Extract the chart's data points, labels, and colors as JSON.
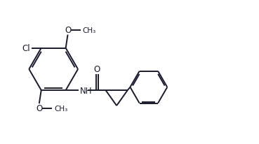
{
  "bg_color": "#ffffff",
  "line_color": "#1a1a2e",
  "line_width": 1.4,
  "font_size": 8.5,
  "fig_width": 3.69,
  "fig_height": 2.07,
  "dpi": 100,
  "xlim": [
    0,
    10
  ],
  "ylim": [
    0,
    5.6
  ]
}
